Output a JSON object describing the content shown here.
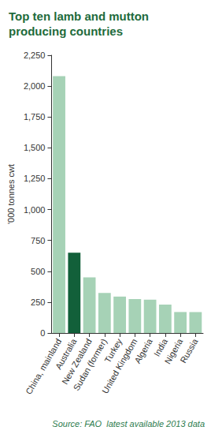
{
  "chart_data": {
    "type": "bar",
    "title": "Top ten lamb and mutton producing countries",
    "y_label": "'000 tonnes cwt",
    "annotations": [
      "Source: FAO  latest available 2013 data"
    ],
    "categories": [
      "China, mainland",
      "Australia",
      "New Zealand",
      "Sudan (former)",
      "Turkey",
      "United Kingdom",
      "Algeria",
      "India",
      "Nigeria",
      "Russia"
    ],
    "values": [
      2080,
      650,
      450,
      325,
      295,
      275,
      270,
      230,
      170,
      170
    ],
    "colors": [
      "#a6d2b6",
      "#12603a",
      "#a6d2b6",
      "#a6d2b6",
      "#a6d2b6",
      "#a6d2b6",
      "#a6d2b6",
      "#a6d2b6",
      "#a6d2b6",
      "#a6d2b6"
    ],
    "ylim": [
      0,
      2250
    ],
    "yticks": [
      0,
      250,
      500,
      750,
      1000,
      1250,
      1500,
      1750,
      2000,
      2250
    ],
    "grid": false
  }
}
